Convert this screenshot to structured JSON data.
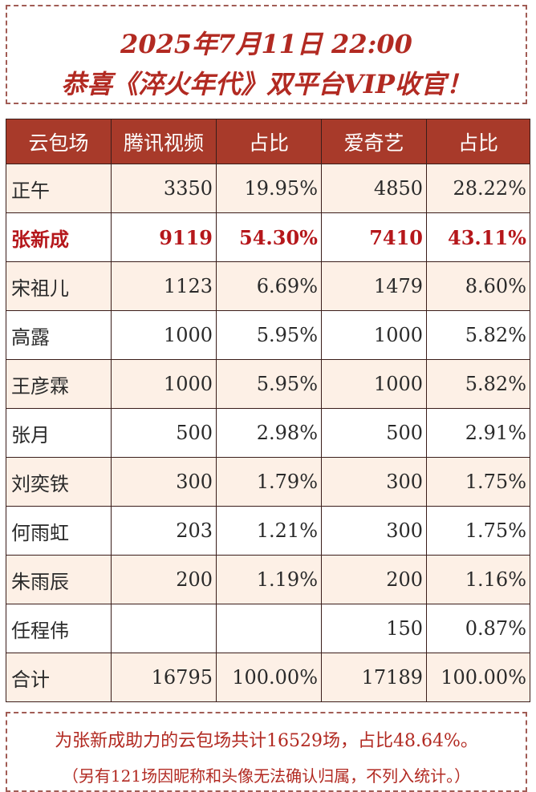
{
  "header": {
    "line1": "2025年7月11日 22:00",
    "line2": "恭喜《淬火年代》双平台VIP收官！"
  },
  "table": {
    "columns": [
      "云包场",
      "腾讯视频",
      "占比",
      "爱奇艺",
      "占比"
    ],
    "rows": [
      {
        "name": "正午",
        "tencent": "3350",
        "tencent_pct": "19.95%",
        "iqiyi": "4850",
        "iqiyi_pct": "28.22%"
      },
      {
        "name": "张新成",
        "tencent": "9119",
        "tencent_pct": "54.30%",
        "iqiyi": "7410",
        "iqiyi_pct": "43.11%"
      },
      {
        "name": "宋祖儿",
        "tencent": "1123",
        "tencent_pct": "6.69%",
        "iqiyi": "1479",
        "iqiyi_pct": "8.60%"
      },
      {
        "name": "高露",
        "tencent": "1000",
        "tencent_pct": "5.95%",
        "iqiyi": "1000",
        "iqiyi_pct": "5.82%"
      },
      {
        "name": "王彦霖",
        "tencent": "1000",
        "tencent_pct": "5.95%",
        "iqiyi": "1000",
        "iqiyi_pct": "5.82%"
      },
      {
        "name": "张月",
        "tencent": "500",
        "tencent_pct": "2.98%",
        "iqiyi": "500",
        "iqiyi_pct": "2.91%"
      },
      {
        "name": "刘奕铁",
        "tencent": "300",
        "tencent_pct": "1.79%",
        "iqiyi": "300",
        "iqiyi_pct": "1.75%"
      },
      {
        "name": "何雨虹",
        "tencent": "203",
        "tencent_pct": "1.21%",
        "iqiyi": "300",
        "iqiyi_pct": "1.75%"
      },
      {
        "name": "朱雨辰",
        "tencent": "200",
        "tencent_pct": "1.19%",
        "iqiyi": "200",
        "iqiyi_pct": "1.16%"
      },
      {
        "name": "任程伟",
        "tencent": "",
        "tencent_pct": "",
        "iqiyi": "150",
        "iqiyi_pct": "0.87%"
      },
      {
        "name": "合计",
        "tencent": "16795",
        "tencent_pct": "100.00%",
        "iqiyi": "17189",
        "iqiyi_pct": "100.00%"
      }
    ]
  },
  "footer": {
    "line1": "为张新成助力的云包场共计16529场，占比48.64%。",
    "line2": "（另有121场因昵称和头像无法确认归属，不列入统计。）"
  },
  "colors": {
    "header_bg": "#a83a2a",
    "accent_text": "#b22a22",
    "highlight_text": "#b5171b",
    "odd_row_bg": "#fdf0e6"
  }
}
